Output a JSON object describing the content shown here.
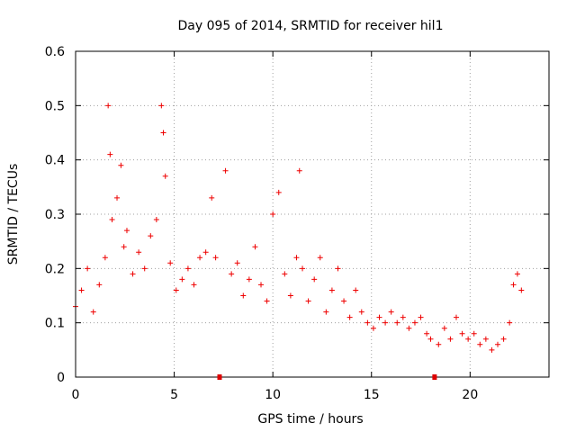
{
  "chart_data": {
    "type": "scatter",
    "title": "Day 095 of 2014, SRMTID for receiver hil1",
    "xlabel": "GPS time / hours",
    "ylabel": "SRMTID / TECUs",
    "xlim": [
      0,
      24
    ],
    "ylim": [
      0,
      0.6
    ],
    "xticks": [
      0,
      5,
      10,
      15,
      20
    ],
    "yticks": [
      0,
      0.1,
      0.2,
      0.3,
      0.4,
      0.5,
      0.6
    ],
    "xtick_labels": [
      "0",
      "5",
      "10",
      "15",
      "20"
    ],
    "ytick_labels": [
      "0",
      "0.1",
      "0.2",
      "0.3",
      "0.4",
      "0.5",
      "0.6"
    ],
    "grid": true,
    "marker": "+",
    "color": "#ee0000",
    "data_gaps_hours": [
      7.3,
      18.2
    ],
    "series": [
      {
        "name": "SRMTID",
        "x": [
          0.0,
          0.3,
          0.6,
          0.9,
          1.2,
          1.5,
          1.65,
          1.75,
          1.85,
          2.1,
          2.3,
          2.45,
          2.6,
          2.9,
          3.2,
          3.5,
          3.8,
          4.1,
          4.35,
          4.45,
          4.55,
          4.8,
          5.1,
          5.4,
          5.7,
          6.0,
          6.3,
          6.6,
          6.9,
          7.1,
          7.6,
          7.9,
          8.2,
          8.5,
          8.8,
          9.1,
          9.4,
          9.7,
          10.0,
          10.3,
          10.6,
          10.9,
          11.2,
          11.35,
          11.5,
          11.8,
          12.1,
          12.4,
          12.7,
          13.0,
          13.3,
          13.6,
          13.9,
          14.2,
          14.5,
          14.8,
          15.1,
          15.4,
          15.7,
          16.0,
          16.3,
          16.6,
          16.9,
          17.2,
          17.5,
          17.8,
          18.0,
          18.4,
          18.7,
          19.0,
          19.3,
          19.6,
          19.9,
          20.2,
          20.5,
          20.8,
          21.1,
          21.4,
          21.7,
          22.0,
          22.2,
          22.4,
          22.6
        ],
        "y": [
          0.13,
          0.16,
          0.2,
          0.12,
          0.17,
          0.22,
          0.5,
          0.41,
          0.29,
          0.33,
          0.39,
          0.24,
          0.27,
          0.19,
          0.23,
          0.2,
          0.26,
          0.29,
          0.5,
          0.45,
          0.37,
          0.21,
          0.16,
          0.18,
          0.2,
          0.17,
          0.22,
          0.23,
          0.33,
          0.22,
          0.38,
          0.19,
          0.21,
          0.15,
          0.18,
          0.24,
          0.17,
          0.14,
          0.3,
          0.34,
          0.19,
          0.15,
          0.22,
          0.38,
          0.2,
          0.14,
          0.18,
          0.22,
          0.12,
          0.16,
          0.2,
          0.14,
          0.11,
          0.16,
          0.12,
          0.1,
          0.09,
          0.11,
          0.1,
          0.12,
          0.1,
          0.11,
          0.09,
          0.1,
          0.11,
          0.08,
          0.07,
          0.06,
          0.09,
          0.07,
          0.11,
          0.08,
          0.07,
          0.08,
          0.06,
          0.07,
          0.05,
          0.06,
          0.07,
          0.1,
          0.17,
          0.19,
          0.16
        ]
      }
    ]
  }
}
